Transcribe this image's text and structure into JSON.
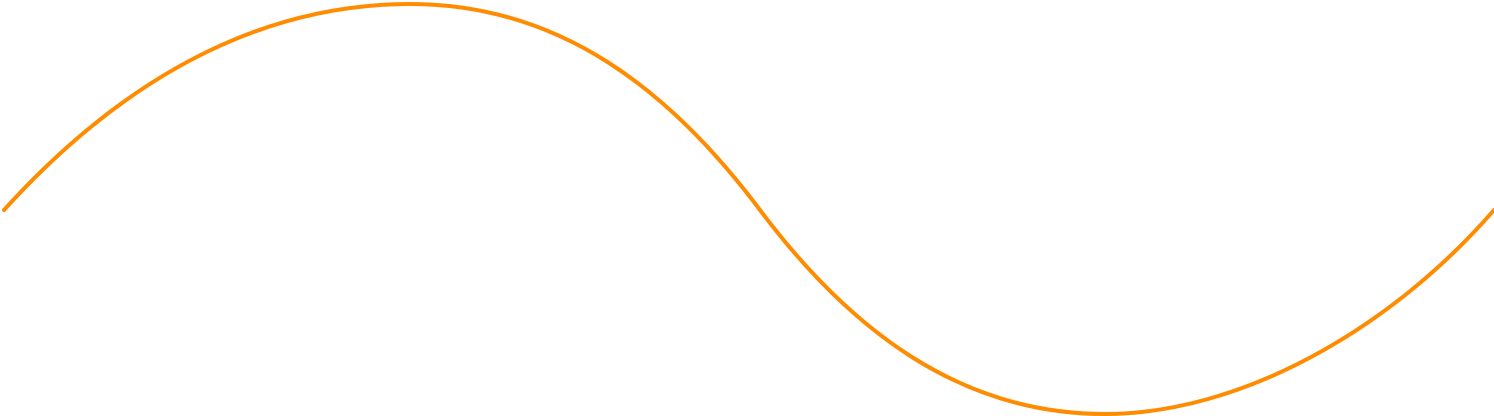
{
  "graphic": {
    "shape": "s-wave-curve",
    "stroke_color": "#ff8c00",
    "background_color": "#ffffff"
  }
}
